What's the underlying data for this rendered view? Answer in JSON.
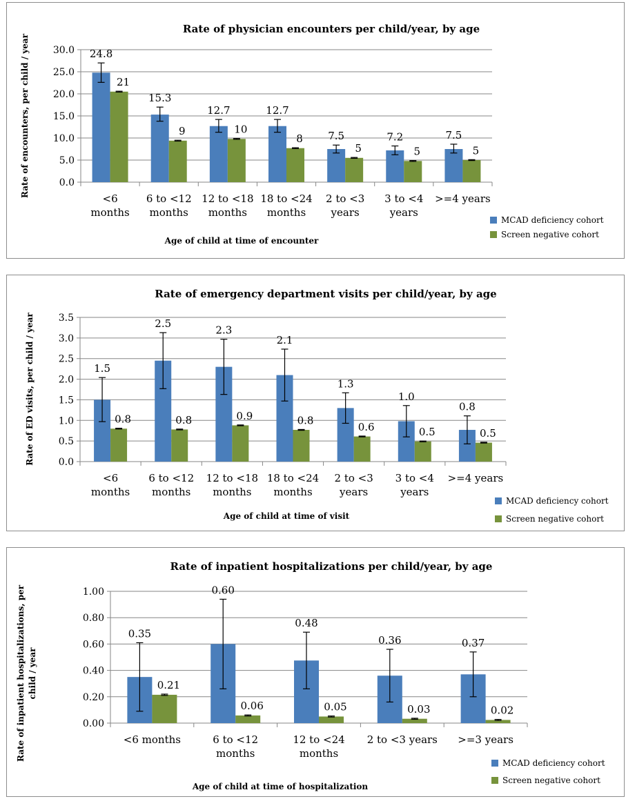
{
  "colors": {
    "mcad": "#4a7ebb",
    "screen": "#77933c",
    "grid": "#868686",
    "axis": "#868686",
    "error": "#000000"
  },
  "chart_data": [
    {
      "type": "bar",
      "title": "Rate of physician encounters per child/year, by age",
      "xlabel": "Age of child at time of encounter",
      "ylabel": "Rate of encounters, per child /  year",
      "ylim": [
        0,
        30
      ],
      "yticks": [
        "0.0",
        "5.0",
        "10.0",
        "15.0",
        "20.0",
        "25.0",
        "30.0"
      ],
      "categories": [
        [
          "<6",
          "months"
        ],
        [
          "6 to <12",
          "months"
        ],
        [
          "12 to <18",
          "months"
        ],
        [
          "18 to <24",
          "months"
        ],
        [
          "2 to <3",
          "years"
        ],
        [
          "3 to <4",
          "years"
        ],
        [
          ">=4 years"
        ]
      ],
      "series": [
        {
          "name": "MCAD deficiency cohort",
          "values": [
            24.8,
            15.3,
            12.7,
            12.7,
            7.5,
            7.2,
            7.5
          ],
          "labels": [
            "24.8",
            "15.3",
            "12.7",
            "12.7",
            "7.5",
            "7.2",
            "7.5"
          ],
          "err_low": [
            22.6,
            13.8,
            11.3,
            11.3,
            6.6,
            6.2,
            6.6
          ],
          "err_high": [
            27.0,
            17.0,
            14.2,
            14.2,
            8.4,
            8.2,
            8.6
          ]
        },
        {
          "name": "Screen negative cohort",
          "values": [
            20.5,
            9.4,
            9.8,
            7.7,
            5.5,
            4.8,
            5.0
          ],
          "labels": [
            "21",
            "9",
            "10",
            "8",
            "5",
            "5",
            "5"
          ],
          "err_low": [
            20.4,
            9.3,
            9.7,
            7.6,
            5.4,
            4.7,
            4.9
          ],
          "err_high": [
            20.6,
            9.5,
            9.9,
            7.8,
            5.6,
            4.9,
            5.1
          ]
        }
      ],
      "grid": true,
      "legend": "bottom-right"
    },
    {
      "type": "bar",
      "title": "Rate of emergency department visits per child/year, by age",
      "xlabel": "Age of child at time of visit",
      "ylabel": "Rate of ED visits, per child  / year",
      "ylim": [
        0,
        3.5
      ],
      "yticks": [
        "0.0",
        "0.5",
        "1.0",
        "1.5",
        "2.0",
        "2.5",
        "3.0",
        "3.5"
      ],
      "categories": [
        [
          "<6",
          "months"
        ],
        [
          "6 to <12",
          "months"
        ],
        [
          "12 to <18",
          "months"
        ],
        [
          "18 to <24",
          "months"
        ],
        [
          "2 to <3",
          "years"
        ],
        [
          "3 to <4",
          "years"
        ],
        [
          ">=4 years"
        ]
      ],
      "series": [
        {
          "name": "MCAD deficiency cohort",
          "values": [
            1.5,
            2.45,
            2.3,
            2.1,
            1.3,
            0.98,
            0.77
          ],
          "labels": [
            "1.5",
            "2.5",
            "2.3",
            "2.1",
            "1.3",
            "1.0",
            "0.8"
          ],
          "err_low": [
            0.97,
            1.77,
            1.63,
            1.47,
            0.93,
            0.6,
            0.43
          ],
          "err_high": [
            2.04,
            3.13,
            2.97,
            2.73,
            1.67,
            1.36,
            1.11
          ]
        },
        {
          "name": "Screen negative cohort",
          "values": [
            0.8,
            0.78,
            0.88,
            0.77,
            0.61,
            0.49,
            0.46
          ],
          "labels": [
            "0.8",
            "0.8",
            "0.9",
            "0.8",
            "0.6",
            "0.5",
            "0.5"
          ],
          "err_low": [
            0.79,
            0.77,
            0.87,
            0.76,
            0.6,
            0.48,
            0.45
          ],
          "err_high": [
            0.81,
            0.79,
            0.89,
            0.78,
            0.62,
            0.5,
            0.47
          ]
        }
      ],
      "grid": true,
      "legend": "bottom-right"
    },
    {
      "type": "bar",
      "title": "Rate of inpatient hospitalizations per child/year, by age",
      "xlabel": "Age of child at time of hospitalization",
      "ylabel": "Rate of inpatient hospitalizations, per child / year",
      "ylim": [
        0,
        1.0
      ],
      "yticks": [
        "0.00",
        "0.20",
        "0.40",
        "0.60",
        "0.80",
        "1.00"
      ],
      "categories": [
        [
          "<6 months"
        ],
        [
          "6 to <12",
          "months"
        ],
        [
          "12 to <24",
          "months"
        ],
        [
          "2 to <3 years"
        ],
        [
          ">=3 years"
        ]
      ],
      "series": [
        {
          "name": "MCAD deficiency cohort",
          "values": [
            0.35,
            0.6,
            0.475,
            0.36,
            0.37
          ],
          "labels": [
            "0.35",
            "0.60",
            "0.48",
            "0.36",
            "0.37"
          ],
          "err_low": [
            0.09,
            0.26,
            0.26,
            0.16,
            0.2
          ],
          "err_high": [
            0.61,
            0.94,
            0.69,
            0.56,
            0.54
          ]
        },
        {
          "name": "Screen negative cohort",
          "values": [
            0.215,
            0.058,
            0.05,
            0.033,
            0.024
          ],
          "labels": [
            "0.21",
            "0.06",
            "0.05",
            "0.03",
            "0.02"
          ],
          "err_low": [
            0.21,
            0.054,
            0.046,
            0.029,
            0.02
          ],
          "err_high": [
            0.22,
            0.062,
            0.054,
            0.037,
            0.028
          ]
        }
      ],
      "grid": true,
      "legend": "bottom-right"
    }
  ]
}
